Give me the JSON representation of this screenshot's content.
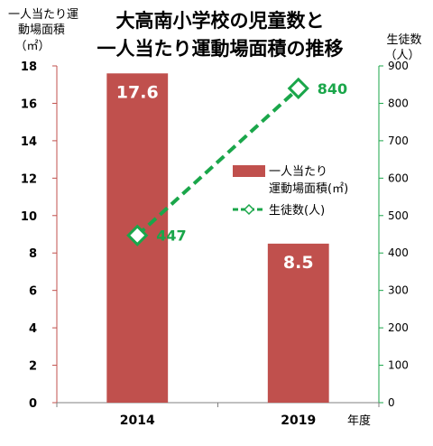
{
  "chart_data": {
    "type": "bar",
    "title_lines": [
      "大高南小学校の児童数と",
      "一人当たり運動場面積の推移"
    ],
    "categories": [
      "2014",
      "2019"
    ],
    "xlabel": "年度",
    "ylabel_left_lines": [
      "一人当たり運",
      "動場面積",
      "（㎡）"
    ],
    "ylabel_right_lines": [
      "生徒数",
      "（人）"
    ],
    "ylim_left": [
      0,
      18
    ],
    "yticks_left": [
      "0",
      "2",
      "4",
      "6",
      "8",
      "10",
      "12",
      "14",
      "16",
      "18"
    ],
    "ylim_right": [
      0,
      900
    ],
    "yticks_right": [
      "0",
      "100",
      "200",
      "300",
      "400",
      "500",
      "600",
      "700",
      "800",
      "900"
    ],
    "series": [
      {
        "name": "一人当たり運動場面積(㎡)",
        "kind": "bar",
        "axis": "left",
        "values": [
          17.6,
          8.5
        ],
        "labels": [
          "17.6",
          "8.5"
        ],
        "color": "#c0504d"
      },
      {
        "name": "生徒数(人)",
        "kind": "line",
        "axis": "right",
        "values": [
          447,
          840
        ],
        "labels": [
          "447",
          "840"
        ],
        "color": "#1aa64a",
        "marker": "diamond-open",
        "line_style": "dashed"
      }
    ],
    "legend_lines": [
      "一人当たり",
      "運動場面積(㎡)",
      "生徒数(人)"
    ],
    "legend_position": "right-middle",
    "grid": false,
    "left_axis_color": "#c0504d",
    "right_axis_color": "#1aa64a"
  }
}
